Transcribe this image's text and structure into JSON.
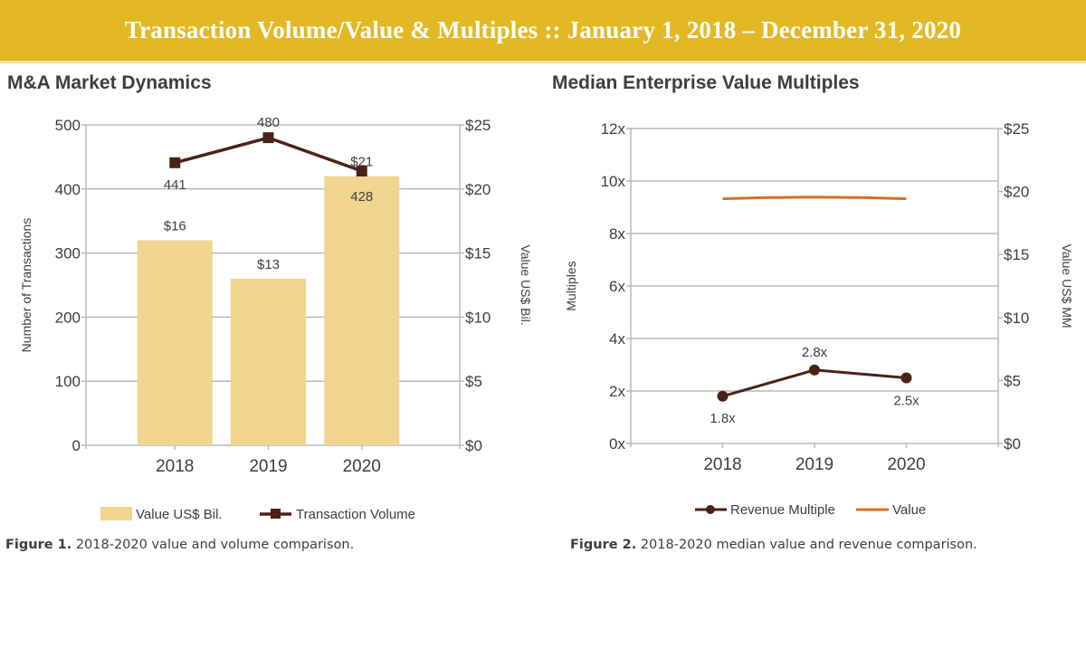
{
  "header": {
    "title": "Transaction Volume/Value & Multiples  ::  January 1, 2018 – December 31, 2020"
  },
  "colors": {
    "banner": "#e2b924",
    "bar": "#f0d48f",
    "volume_line": "#4a2218",
    "revenue_line": "#4a2218",
    "value_line": "#d4712b",
    "grid": "#b8b8b8"
  },
  "figures": [
    {
      "section_title": "M&A Market Dynamics",
      "caption_bold": "Figure 1.",
      "caption_text": " 2018-2020 value and volume comparison."
    },
    {
      "section_title": "Median Enterprise Value Multiples",
      "caption_bold": "Figure 2.",
      "caption_text": " 2018-2020 median value and revenue comparison."
    }
  ],
  "chart_data": [
    {
      "type": "bar",
      "title": "M&A Market Dynamics",
      "categories": [
        "2018",
        "2019",
        "2020"
      ],
      "xlabel": "",
      "ylabel": "Number of Transactions",
      "ylabel_right": "Value US$ Bil.",
      "ylim": [
        0,
        500
      ],
      "ylim_right": [
        0,
        25
      ],
      "yticks": [
        "0",
        "100",
        "200",
        "300",
        "400",
        "500"
      ],
      "yticks_right": [
        "$0",
        "$5",
        "$10",
        "$15",
        "$20",
        "$25"
      ],
      "grid": true,
      "legend_position": "bottom",
      "series": [
        {
          "name": "Value US$ Bil.",
          "kind": "bar",
          "axis": "right",
          "values": [
            16,
            13,
            21
          ],
          "labels": [
            "$16",
            "$13",
            "$21"
          ]
        },
        {
          "name": "Transaction Volume",
          "kind": "line",
          "marker": "square",
          "axis": "left",
          "values": [
            441,
            480,
            428
          ],
          "labels": [
            "441",
            "480",
            "428"
          ]
        }
      ]
    },
    {
      "type": "line",
      "title": "Median Enterprise Value Multiples",
      "categories": [
        "2018",
        "2019",
        "2020"
      ],
      "xlabel": "",
      "ylabel": "Multiples",
      "ylabel_right": "Value US$ MM",
      "ylim": [
        0,
        12
      ],
      "ylim_right": [
        0,
        25
      ],
      "yticks": [
        "0x",
        "2x",
        "4x",
        "6x",
        "8x",
        "10x",
        "12x"
      ],
      "yticks_right": [
        "$0",
        "$5",
        "$10",
        "$15",
        "$20",
        "$25"
      ],
      "grid": true,
      "legend_position": "bottom",
      "series": [
        {
          "name": "Revenue Multiple",
          "kind": "line",
          "marker": "circle",
          "axis": "left",
          "values": [
            1.8,
            2.8,
            2.5
          ],
          "labels": [
            "1.8x",
            "2.8x",
            "2.5x"
          ]
        },
        {
          "name": "Value",
          "kind": "line",
          "marker": "none",
          "axis": "right",
          "values": [
            20.0,
            20.1,
            20.0
          ],
          "labels": []
        }
      ]
    }
  ]
}
